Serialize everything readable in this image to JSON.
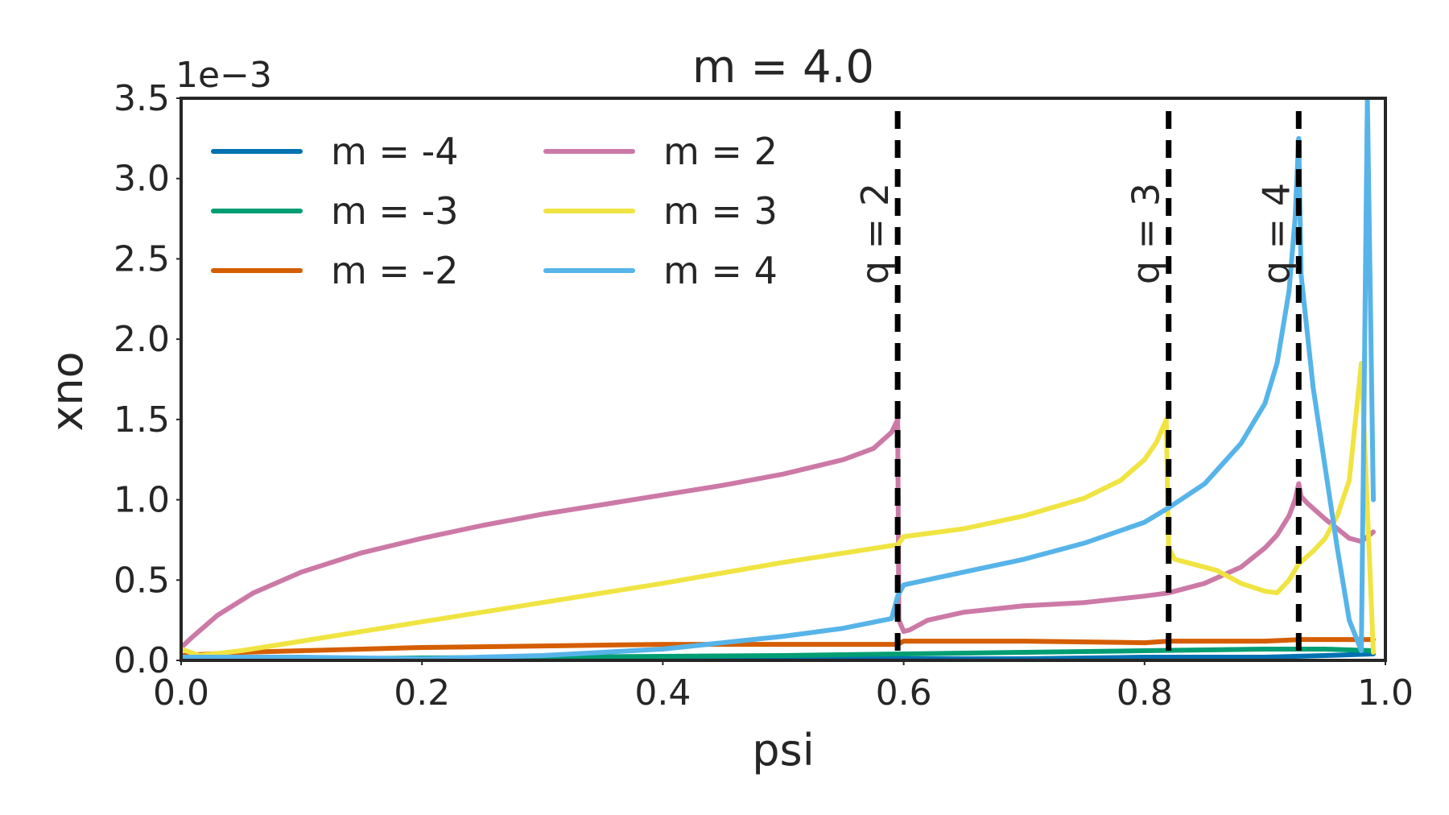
{
  "chart_data": {
    "type": "line",
    "title": "m = 4.0",
    "xlabel": "psi",
    "ylabel": "xno",
    "y_offset_text": "1e−3",
    "xlim": [
      0.0,
      1.0
    ],
    "ylim": [
      0.0,
      3.5
    ],
    "x_ticks": [
      "0.0",
      "0.2",
      "0.4",
      "0.6",
      "0.8",
      "1.0"
    ],
    "y_ticks": [
      "0.0",
      "0.5",
      "1.0",
      "1.5",
      "2.0",
      "2.5",
      "3.0",
      "3.5"
    ],
    "grid": false,
    "legend_position": "top-left",
    "rational_surfaces": [
      {
        "label": "q = 2",
        "psi": 0.595
      },
      {
        "label": "q = 3",
        "psi": 0.82
      },
      {
        "label": "q = 4",
        "psi": 0.928
      }
    ],
    "series": [
      {
        "name": "m = -4",
        "color": "#0072B2",
        "x": [
          0.0,
          0.1,
          0.2,
          0.3,
          0.4,
          0.5,
          0.6,
          0.7,
          0.8,
          0.9,
          0.95,
          0.99
        ],
        "y": [
          0.01,
          0.01,
          0.01,
          0.01,
          0.01,
          0.01,
          0.01,
          0.01,
          0.02,
          0.02,
          0.03,
          0.04
        ]
      },
      {
        "name": "m = -3",
        "color": "#009E73",
        "x": [
          0.0,
          0.1,
          0.2,
          0.3,
          0.4,
          0.5,
          0.6,
          0.7,
          0.8,
          0.9,
          0.95,
          0.99
        ],
        "y": [
          0.01,
          0.01,
          0.015,
          0.02,
          0.025,
          0.03,
          0.04,
          0.05,
          0.06,
          0.07,
          0.07,
          0.06
        ]
      },
      {
        "name": "m = -2",
        "color": "#D55E00",
        "x": [
          0.0,
          0.05,
          0.1,
          0.2,
          0.3,
          0.4,
          0.5,
          0.595,
          0.6,
          0.7,
          0.8,
          0.82,
          0.9,
          0.93,
          0.99
        ],
        "y": [
          0.03,
          0.05,
          0.06,
          0.08,
          0.09,
          0.1,
          0.1,
          0.1,
          0.12,
          0.12,
          0.11,
          0.12,
          0.12,
          0.13,
          0.13
        ]
      },
      {
        "name": "m = 2",
        "color": "#CC79A7",
        "x": [
          0.0,
          0.01,
          0.03,
          0.06,
          0.1,
          0.15,
          0.2,
          0.25,
          0.3,
          0.35,
          0.4,
          0.45,
          0.5,
          0.55,
          0.575,
          0.59,
          0.595,
          0.596,
          0.6,
          0.605,
          0.62,
          0.65,
          0.7,
          0.75,
          0.8,
          0.82,
          0.85,
          0.88,
          0.9,
          0.91,
          0.92,
          0.925,
          0.928,
          0.93,
          0.935,
          0.95,
          0.97,
          0.98,
          0.99
        ],
        "y": [
          0.08,
          0.15,
          0.28,
          0.42,
          0.55,
          0.67,
          0.76,
          0.84,
          0.91,
          0.97,
          1.03,
          1.09,
          1.16,
          1.25,
          1.32,
          1.42,
          1.5,
          0.25,
          0.18,
          0.19,
          0.25,
          0.3,
          0.34,
          0.36,
          0.4,
          0.42,
          0.48,
          0.58,
          0.7,
          0.78,
          0.9,
          1.0,
          1.1,
          1.02,
          0.98,
          0.88,
          0.76,
          0.74,
          0.8
        ]
      },
      {
        "name": "m = 3",
        "color": "#F0E442",
        "x": [
          0.0,
          0.015,
          0.05,
          0.1,
          0.2,
          0.3,
          0.4,
          0.5,
          0.595,
          0.6,
          0.65,
          0.7,
          0.75,
          0.78,
          0.8,
          0.81,
          0.818,
          0.82,
          0.825,
          0.84,
          0.86,
          0.88,
          0.9,
          0.91,
          0.92,
          0.928,
          0.94,
          0.95,
          0.96,
          0.97,
          0.98,
          0.99
        ],
        "y": [
          0.07,
          0.03,
          0.06,
          0.12,
          0.24,
          0.36,
          0.48,
          0.61,
          0.72,
          0.77,
          0.82,
          0.9,
          1.01,
          1.12,
          1.25,
          1.36,
          1.5,
          0.7,
          0.63,
          0.6,
          0.56,
          0.48,
          0.43,
          0.42,
          0.5,
          0.6,
          0.68,
          0.76,
          0.9,
          1.12,
          1.85,
          0.05
        ]
      },
      {
        "name": "m = 4",
        "color": "#56B4E9",
        "x": [
          0.0,
          0.1,
          0.2,
          0.3,
          0.4,
          0.5,
          0.55,
          0.59,
          0.595,
          0.6,
          0.65,
          0.7,
          0.75,
          0.8,
          0.82,
          0.85,
          0.88,
          0.9,
          0.91,
          0.92,
          0.925,
          0.928,
          0.93,
          0.94,
          0.95,
          0.96,
          0.97,
          0.98,
          0.985,
          0.99
        ],
        "y": [
          0.02,
          0.02,
          0.01,
          0.03,
          0.07,
          0.15,
          0.2,
          0.26,
          0.4,
          0.47,
          0.55,
          0.63,
          0.73,
          0.86,
          0.95,
          1.1,
          1.35,
          1.6,
          1.85,
          2.3,
          2.75,
          3.25,
          2.4,
          1.7,
          1.2,
          0.7,
          0.25,
          0.06,
          3.5,
          1.0
        ]
      }
    ]
  }
}
